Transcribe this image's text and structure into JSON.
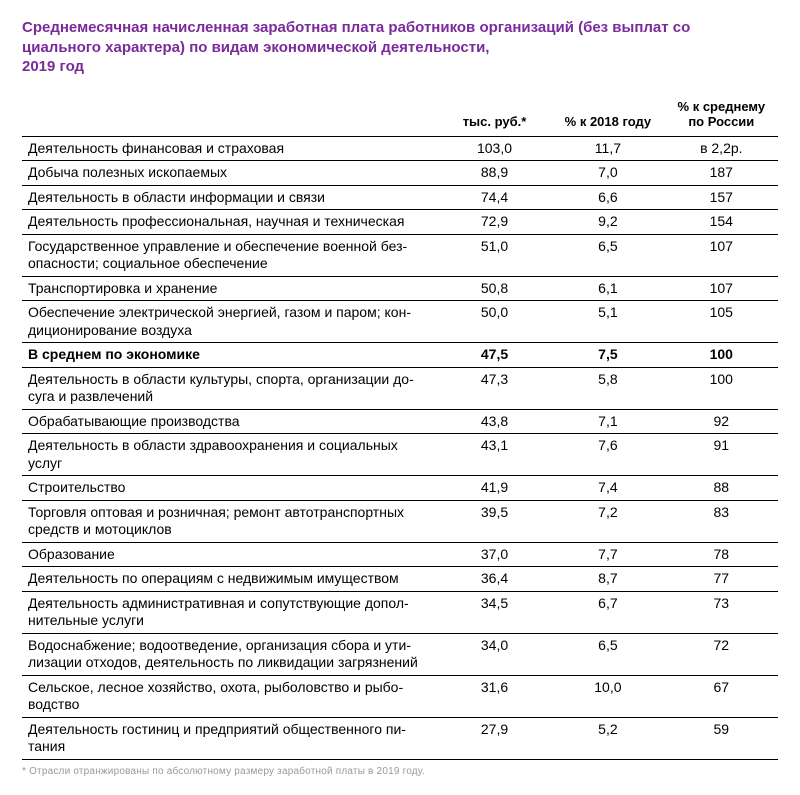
{
  "title_line1": "Среднемесячная начисленная заработная плата работников организаций (без выплат со",
  "title_line2": "циального характера) по видам экономической деятельности,",
  "title_line3": "2019 год",
  "columns": {
    "name": "",
    "c1": "тыс. руб.*",
    "c2": "% к 2018 году",
    "c3": "% к сред­нему по России"
  },
  "rows": [
    {
      "name": "Деятельность финансовая и страховая",
      "c1": "103,0",
      "c2": "11,7",
      "c3": "в 2,2р.",
      "bold": false
    },
    {
      "name": "Добыча полезных ископаемых",
      "c1": "88,9",
      "c2": "7,0",
      "c3": "187",
      "bold": false
    },
    {
      "name": "Деятельность в области информации и связи",
      "c1": "74,4",
      "c2": "6,6",
      "c3": "157",
      "bold": false
    },
    {
      "name": "Деятельность профессиональная, научная и техническая",
      "c1": "72,9",
      "c2": "9,2",
      "c3": "154",
      "bold": false
    },
    {
      "name": "Государственное управление и обеспечение военной без­опасности; социальное обеспечение",
      "c1": "51,0",
      "c2": "6,5",
      "c3": "107",
      "bold": false
    },
    {
      "name": "Транспортировка и хранение",
      "c1": "50,8",
      "c2": "6,1",
      "c3": "107",
      "bold": false
    },
    {
      "name": "Обеспечение электрической энергией, газом и паром; кон­диционирование воздуха",
      "c1": "50,0",
      "c2": "5,1",
      "c3": "105",
      "bold": false
    },
    {
      "name": "В среднем по экономике",
      "c1": "47,5",
      "c2": "7,5",
      "c3": "100",
      "bold": true
    },
    {
      "name": "Деятельность в области культуры, спорта, организации до­суга и развлечений",
      "c1": "47,3",
      "c2": "5,8",
      "c3": "100",
      "bold": false
    },
    {
      "name": "Обрабатывающие производства",
      "c1": "43,8",
      "c2": "7,1",
      "c3": "92",
      "bold": false
    },
    {
      "name": "Деятельность в области здравоохранения и социальных услуг",
      "c1": "43,1",
      "c2": "7,6",
      "c3": "91",
      "bold": false
    },
    {
      "name": "Строительство",
      "c1": "41,9",
      "c2": "7,4",
      "c3": "88",
      "bold": false
    },
    {
      "name": "Торговля оптовая и розничная; ремонт автотранспортных средств и мотоциклов",
      "c1": "39,5",
      "c2": "7,2",
      "c3": "83",
      "bold": false
    },
    {
      "name": "Образование",
      "c1": "37,0",
      "c2": "7,7",
      "c3": "78",
      "bold": false
    },
    {
      "name": "Деятельность по операциям с недвижимым имуществом",
      "c1": "36,4",
      "c2": "8,7",
      "c3": "77",
      "bold": false
    },
    {
      "name": "Деятельность административная и сопутствующие допол­нительные услуги",
      "c1": "34,5",
      "c2": "6,7",
      "c3": "73",
      "bold": false
    },
    {
      "name": "Водоснабжение; водоотведение, организация сбора и ути­лизации отходов, деятельность по ликвидации загрязне­ний",
      "c1": "34,0",
      "c2": "6,5",
      "c3": "72",
      "bold": false
    },
    {
      "name": "Сельское, лесное хозяйство, охота, рыболовство и рыбо­водство",
      "c1": "31,6",
      "c2": "10,0",
      "c3": "67",
      "bold": false
    },
    {
      "name": "Деятельность гостиниц и предприятий общественного пи­тания",
      "c1": "27,9",
      "c2": "5,2",
      "c3": "59",
      "bold": false
    }
  ],
  "footnote": "* Отрасли отранжированы по абсолютному размеру заработной платы в 2019 году."
}
